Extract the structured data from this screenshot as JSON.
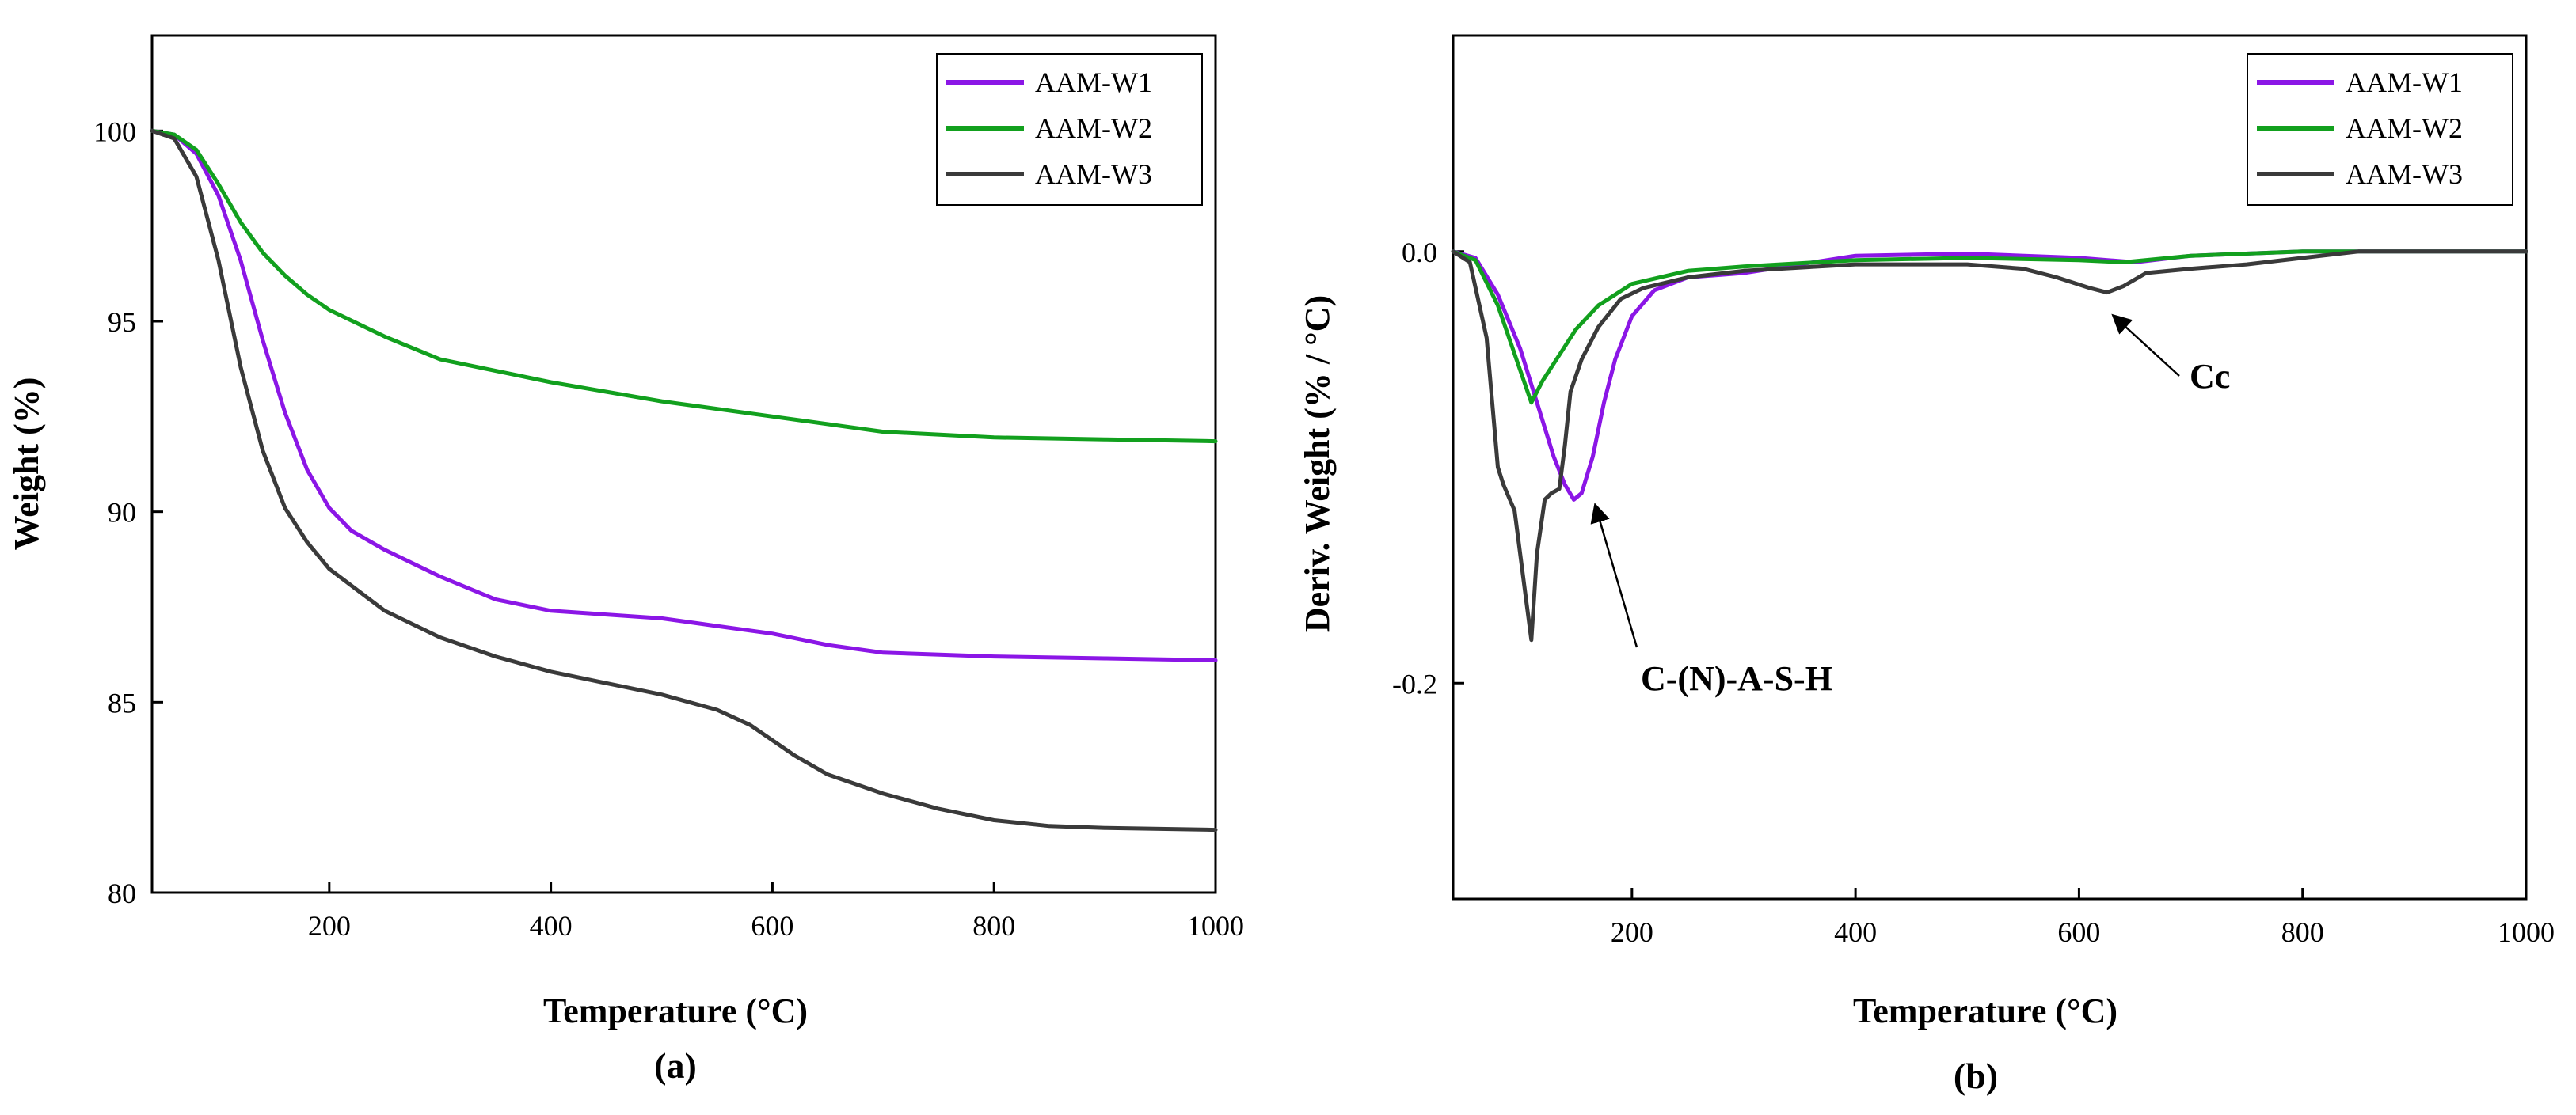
{
  "colors": {
    "AAM-W1": "#8B16E6",
    "AAM-W2": "#12A01E",
    "AAM-W3": "#3A3A3A",
    "axis": "#000000"
  },
  "chart_data": [
    {
      "type": "line",
      "title": "",
      "panel_label": "(a)",
      "xlabel": "Temperature (°C)",
      "ylabel": "Weight (%)",
      "xlim": [
        40,
        1000
      ],
      "ylim": [
        80,
        102.5
      ],
      "xticks": [
        200,
        400,
        600,
        800,
        1000
      ],
      "xtick_labels": [
        "200",
        "400",
        "600",
        "800",
        "1000"
      ],
      "yticks": [
        80,
        85,
        90,
        95,
        100
      ],
      "ytick_labels": [
        "80",
        "85",
        "90",
        "95",
        "100"
      ],
      "legend": {
        "position": "top-right",
        "entries": [
          "AAM-W1",
          "AAM-W2",
          "AAM-W3"
        ]
      },
      "series": [
        {
          "name": "AAM-W1",
          "x": [
            40,
            60,
            80,
            100,
            120,
            140,
            160,
            180,
            200,
            220,
            250,
            300,
            350,
            400,
            500,
            550,
            600,
            650,
            700,
            800,
            900,
            1000
          ],
          "y": [
            100,
            99.9,
            99.4,
            98.3,
            96.6,
            94.5,
            92.6,
            91.1,
            90.1,
            89.5,
            89.0,
            88.3,
            87.7,
            87.4,
            87.2,
            87.0,
            86.8,
            86.5,
            86.3,
            86.2,
            86.15,
            86.1
          ]
        },
        {
          "name": "AAM-W2",
          "x": [
            40,
            60,
            80,
            100,
            120,
            140,
            160,
            180,
            200,
            250,
            300,
            400,
            500,
            600,
            700,
            800,
            900,
            1000
          ],
          "y": [
            100,
            99.9,
            99.5,
            98.6,
            97.6,
            96.8,
            96.2,
            95.7,
            95.3,
            94.6,
            94.0,
            93.4,
            92.9,
            92.5,
            92.1,
            91.95,
            91.9,
            91.85
          ]
        },
        {
          "name": "AAM-W3",
          "x": [
            40,
            60,
            80,
            100,
            120,
            140,
            160,
            180,
            200,
            250,
            300,
            350,
            400,
            450,
            500,
            550,
            580,
            620,
            650,
            700,
            750,
            800,
            850,
            900,
            1000
          ],
          "y": [
            100,
            99.8,
            98.8,
            96.6,
            93.8,
            91.6,
            90.1,
            89.2,
            88.5,
            87.4,
            86.7,
            86.2,
            85.8,
            85.5,
            85.2,
            84.8,
            84.4,
            83.6,
            83.1,
            82.6,
            82.2,
            81.9,
            81.75,
            81.7,
            81.65
          ]
        }
      ]
    },
    {
      "type": "line",
      "title": "",
      "panel_label": "(b)",
      "xlabel": "Temperature (°C)",
      "ylabel": "Deriv. Weight (% / °C)",
      "xlim": [
        40,
        1000
      ],
      "ylim": [
        -0.3,
        0.1
      ],
      "xticks": [
        200,
        400,
        600,
        800,
        1000
      ],
      "xtick_labels": [
        "200",
        "400",
        "600",
        "800",
        "1000"
      ],
      "yticks": [
        -0.2,
        0.0
      ],
      "ytick_labels": [
        "-0.2",
        "0.0"
      ],
      "legend": {
        "position": "top-right",
        "entries": [
          "AAM-W1",
          "AAM-W2",
          "AAM-W3"
        ]
      },
      "series": [
        {
          "name": "AAM-W1",
          "x": [
            40,
            60,
            80,
            100,
            115,
            130,
            140,
            148,
            155,
            165,
            175,
            185,
            200,
            220,
            250,
            300,
            350,
            400,
            500,
            600,
            650,
            700,
            800,
            900,
            1000
          ],
          "y": [
            0,
            -0.003,
            -0.02,
            -0.045,
            -0.07,
            -0.095,
            -0.108,
            -0.115,
            -0.112,
            -0.095,
            -0.07,
            -0.05,
            -0.03,
            -0.018,
            -0.012,
            -0.01,
            -0.006,
            -0.002,
            -0.001,
            -0.003,
            -0.005,
            -0.002,
            0,
            0,
            0
          ]
        },
        {
          "name": "AAM-W2",
          "x": [
            40,
            60,
            80,
            100,
            110,
            120,
            135,
            150,
            170,
            200,
            250,
            300,
            400,
            500,
            600,
            640,
            700,
            800,
            900,
            1000
          ],
          "y": [
            0,
            -0.004,
            -0.025,
            -0.055,
            -0.07,
            -0.06,
            -0.048,
            -0.036,
            -0.025,
            -0.015,
            -0.009,
            -0.007,
            -0.004,
            -0.003,
            -0.004,
            -0.005,
            -0.002,
            0,
            0,
            0
          ]
        },
        {
          "name": "AAM-W3",
          "x": [
            40,
            55,
            70,
            80,
            85,
            95,
            105,
            110,
            115,
            122,
            128,
            135,
            140,
            145,
            155,
            170,
            190,
            210,
            250,
            300,
            400,
            500,
            550,
            580,
            610,
            625,
            640,
            660,
            700,
            750,
            800,
            850,
            900,
            1000
          ],
          "y": [
            0,
            -0.005,
            -0.04,
            -0.1,
            -0.108,
            -0.12,
            -0.16,
            -0.18,
            -0.14,
            -0.115,
            -0.112,
            -0.11,
            -0.09,
            -0.065,
            -0.05,
            -0.035,
            -0.022,
            -0.017,
            -0.012,
            -0.009,
            -0.006,
            -0.006,
            -0.008,
            -0.012,
            -0.017,
            -0.019,
            -0.016,
            -0.01,
            -0.008,
            -0.006,
            -0.003,
            0,
            0,
            0
          ]
        }
      ],
      "annotations": [
        {
          "text": "C-(N)-A-S-H",
          "target_x": 150,
          "target_y": -0.115
        },
        {
          "text": "Cc",
          "target_x": 625,
          "target_y": -0.03
        }
      ]
    }
  ]
}
